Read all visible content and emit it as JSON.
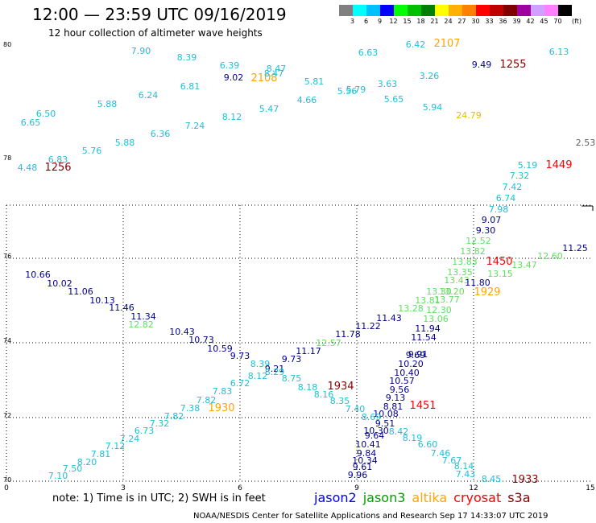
{
  "header": {
    "title": "12:00  —  23:59 UTC 09/16/2019",
    "subtitle": "12 hour collection of altimeter wave heights"
  },
  "color_legend": {
    "unit": "(ft)",
    "colors": [
      "#808080",
      "#00ffff",
      "#00bfff",
      "#0000ff",
      "#00ff00",
      "#00c000",
      "#008000",
      "#ffff00",
      "#ffb000",
      "#ff8000",
      "#ff0000",
      "#c00000",
      "#800000",
      "#a000a0",
      "#d0a0ff",
      "#ff80ff",
      "#000000"
    ],
    "labels": [
      "3",
      "6",
      "9",
      "12",
      "15",
      "18",
      "21",
      "24",
      "27",
      "30",
      "33",
      "36",
      "39",
      "42",
      "45",
      "70"
    ]
  },
  "axes": {
    "x_ticks": [
      "0",
      "3",
      "6",
      "9",
      "12",
      "15"
    ],
    "y_ticks": [
      "70",
      "72",
      "74",
      "76",
      "78",
      "80"
    ]
  },
  "colors": {
    "cyan": "#1fc0d8",
    "navy": "#00008b",
    "green": "#60e060",
    "orange": "#ffa500",
    "red": "#ff0000",
    "darkred": "#8b0000",
    "yellow": "#e0c000",
    "gray": "#606060"
  },
  "wave_labels": [
    {
      "t": "7.90",
      "c": "cyan"
    },
    {
      "t": "8.39",
      "c": "cyan"
    },
    {
      "t": "6.39",
      "c": "cyan"
    },
    {
      "t": "9.02",
      "c": "navy"
    },
    {
      "t": "2108",
      "c": "orange",
      "b": 1
    },
    {
      "t": "8.47",
      "c": "cyan"
    },
    {
      "t": "8.47",
      "c": "cyan"
    },
    {
      "t": "6.63",
      "c": "cyan"
    },
    {
      "t": "6.42",
      "c": "cyan"
    },
    {
      "t": "2107",
      "c": "orange",
      "b": 1
    },
    {
      "t": "9.49",
      "c": "navy"
    },
    {
      "t": "1255",
      "c": "darkred",
      "b": 1
    },
    {
      "t": "6.13",
      "c": "cyan"
    },
    {
      "t": "6.81",
      "c": "cyan"
    },
    {
      "t": "5.81",
      "c": "cyan"
    },
    {
      "t": "3.63",
      "c": "cyan"
    },
    {
      "t": "3.26",
      "c": "cyan"
    },
    {
      "t": "6.24",
      "c": "cyan"
    },
    {
      "t": "5.56",
      "c": "cyan"
    },
    {
      "t": "5.79",
      "c": "cyan"
    },
    {
      "t": "5.88",
      "c": "cyan"
    },
    {
      "t": "4.66",
      "c": "cyan"
    },
    {
      "t": "5.65",
      "c": "cyan"
    },
    {
      "t": "6.50",
      "c": "cyan"
    },
    {
      "t": "5.47",
      "c": "cyan"
    },
    {
      "t": "5.94",
      "c": "cyan"
    },
    {
      "t": "8.12",
      "c": "cyan"
    },
    {
      "t": "24.79",
      "c": "yellow"
    },
    {
      "t": "6.65",
      "c": "cyan"
    },
    {
      "t": "7.24",
      "c": "cyan"
    },
    {
      "t": "6.36",
      "c": "cyan"
    },
    {
      "t": "5.88",
      "c": "cyan"
    },
    {
      "t": "5.76",
      "c": "cyan"
    },
    {
      "t": "2.53",
      "c": "gray"
    },
    {
      "t": "6.83",
      "c": "cyan"
    },
    {
      "t": "4.48",
      "c": "cyan"
    },
    {
      "t": "1256",
      "c": "darkred",
      "b": 1
    },
    {
      "t": "5.19",
      "c": "cyan"
    },
    {
      "t": "1449",
      "c": "red",
      "b": 1
    },
    {
      "t": "7.32",
      "c": "cyan"
    },
    {
      "t": "7.42",
      "c": "cyan"
    },
    {
      "t": "6.74",
      "c": "cyan"
    },
    {
      "t": "7.98",
      "c": "cyan"
    },
    {
      "t": "9.07",
      "c": "navy"
    },
    {
      "t": "9.30",
      "c": "navy"
    },
    {
      "t": "12.52",
      "c": "green"
    },
    {
      "t": "11.25",
      "c": "navy"
    },
    {
      "t": "13.82",
      "c": "green"
    },
    {
      "t": "12.60",
      "c": "green"
    },
    {
      "t": "13.83",
      "c": "green"
    },
    {
      "t": "1450",
      "c": "red",
      "b": 1
    },
    {
      "t": "13.47",
      "c": "green"
    },
    {
      "t": "13.35",
      "c": "green"
    },
    {
      "t": "13.15",
      "c": "green"
    },
    {
      "t": "10.66",
      "c": "navy"
    },
    {
      "t": "13.43",
      "c": "green"
    },
    {
      "t": "11.80",
      "c": "navy"
    },
    {
      "t": "10.02",
      "c": "navy"
    },
    {
      "t": "13.20",
      "c": "green"
    },
    {
      "t": "13.30",
      "c": "green"
    },
    {
      "t": "1929",
      "c": "orange",
      "b": 1
    },
    {
      "t": "11.06",
      "c": "navy"
    },
    {
      "t": "13.81",
      "c": "green"
    },
    {
      "t": "13.77",
      "c": "green"
    },
    {
      "t": "10.13",
      "c": "navy"
    },
    {
      "t": "13.28",
      "c": "green"
    },
    {
      "t": "12.30",
      "c": "green"
    },
    {
      "t": "11.46",
      "c": "navy"
    },
    {
      "t": "11.34",
      "c": "navy"
    },
    {
      "t": "11.43",
      "c": "navy"
    },
    {
      "t": "13.06",
      "c": "green"
    },
    {
      "t": "12.82",
      "c": "green"
    },
    {
      "t": "11.22",
      "c": "navy"
    },
    {
      "t": "11.94",
      "c": "navy"
    },
    {
      "t": "10.43",
      "c": "navy"
    },
    {
      "t": "11.78",
      "c": "navy"
    },
    {
      "t": "11.54",
      "c": "navy"
    },
    {
      "t": "10.73",
      "c": "navy"
    },
    {
      "t": "12.57",
      "c": "green"
    },
    {
      "t": "10.59",
      "c": "navy"
    },
    {
      "t": "11.17",
      "c": "navy"
    },
    {
      "t": "9.91",
      "c": "navy"
    },
    {
      "t": "9.73",
      "c": "navy"
    },
    {
      "t": "9.73",
      "c": "navy"
    },
    {
      "t": "9.69",
      "c": "navy"
    },
    {
      "t": "10.20",
      "c": "navy"
    },
    {
      "t": "8.39",
      "c": "cyan"
    },
    {
      "t": "9.21",
      "c": "navy"
    },
    {
      "t": "8.29",
      "c": "cyan"
    },
    {
      "t": "10.40",
      "c": "navy"
    },
    {
      "t": "8.12",
      "c": "cyan"
    },
    {
      "t": "8.75",
      "c": "cyan"
    },
    {
      "t": "6.72",
      "c": "cyan"
    },
    {
      "t": "8.18",
      "c": "cyan"
    },
    {
      "t": "1934",
      "c": "darkred",
      "b": 1
    },
    {
      "t": "10.57",
      "c": "navy"
    },
    {
      "t": "7.83",
      "c": "cyan"
    },
    {
      "t": "8.16",
      "c": "cyan"
    },
    {
      "t": "9.56",
      "c": "navy"
    },
    {
      "t": "9.13",
      "c": "navy"
    },
    {
      "t": "7.82",
      "c": "cyan"
    },
    {
      "t": "8.35",
      "c": "cyan"
    },
    {
      "t": "8.81",
      "c": "navy"
    },
    {
      "t": "1451",
      "c": "red",
      "b": 1
    },
    {
      "t": "7.38",
      "c": "cyan"
    },
    {
      "t": "1930",
      "c": "orange",
      "b": 1
    },
    {
      "t": "7.40",
      "c": "cyan"
    },
    {
      "t": "10.08",
      "c": "navy"
    },
    {
      "t": "7.82",
      "c": "cyan"
    },
    {
      "t": "8.69",
      "c": "cyan"
    },
    {
      "t": "9.51",
      "c": "navy"
    },
    {
      "t": "7.32",
      "c": "cyan"
    },
    {
      "t": "10.30",
      "c": "navy"
    },
    {
      "t": "8.42",
      "c": "cyan"
    },
    {
      "t": "6.73",
      "c": "cyan"
    },
    {
      "t": "9.64",
      "c": "navy"
    },
    {
      "t": "8.19",
      "c": "cyan"
    },
    {
      "t": "7.24",
      "c": "cyan"
    },
    {
      "t": "10.41",
      "c": "navy"
    },
    {
      "t": "6.60",
      "c": "cyan"
    },
    {
      "t": "7.12",
      "c": "cyan"
    },
    {
      "t": "9.84",
      "c": "navy"
    },
    {
      "t": "7.46",
      "c": "cyan"
    },
    {
      "t": "7.81",
      "c": "cyan"
    },
    {
      "t": "10.34",
      "c": "navy"
    },
    {
      "t": "7.67",
      "c": "cyan"
    },
    {
      "t": "8.20",
      "c": "cyan"
    },
    {
      "t": "9.61",
      "c": "navy"
    },
    {
      "t": "8.14",
      "c": "cyan"
    },
    {
      "t": "7.50",
      "c": "cyan"
    },
    {
      "t": "7.43",
      "c": "cyan"
    },
    {
      "t": "7.10",
      "c": "cyan"
    },
    {
      "t": "9.96",
      "c": "navy"
    },
    {
      "t": "8.45",
      "c": "cyan"
    },
    {
      "t": "1933",
      "c": "darkred",
      "b": 1
    }
  ],
  "footnote": "note:  1) Time is in UTC; 2) SWH is in feet",
  "satellites": [
    {
      "name": "jason2",
      "color": "#0000ff"
    },
    {
      "name": "jason3",
      "color": "#00a000"
    },
    {
      "name": "altika",
      "color": "#ffa500"
    },
    {
      "name": "cryosat",
      "color": "#ff0000"
    },
    {
      "name": "s3a",
      "color": "#8b0000"
    }
  ],
  "credit": "NOAA/NESDIS Center for Satellite Applications and Research    Sep 17 14:33:07 UTC 2019"
}
